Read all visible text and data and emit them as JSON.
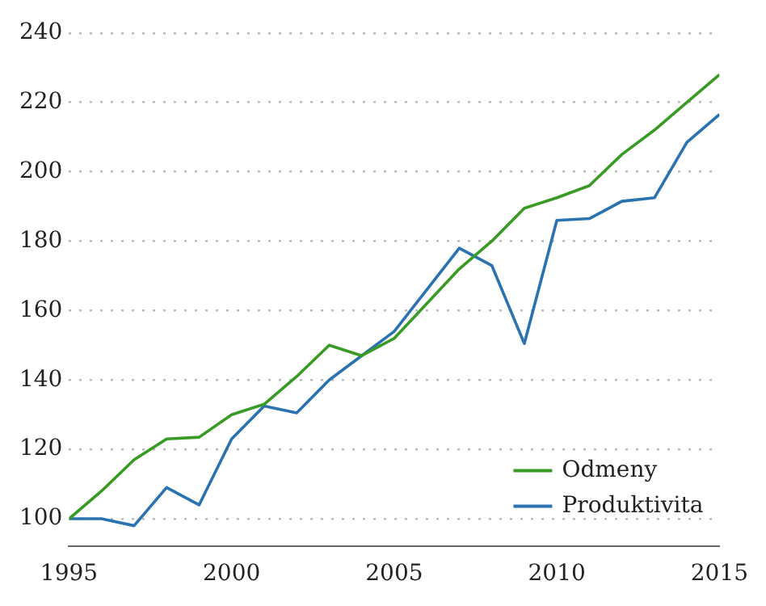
{
  "chart_data": {
    "type": "line",
    "x": [
      1995,
      1996,
      1997,
      1998,
      1999,
      2000,
      2001,
      2002,
      2003,
      2004,
      2005,
      2006,
      2007,
      2008,
      2009,
      2010,
      2011,
      2012,
      2013,
      2014,
      2015
    ],
    "series": [
      {
        "name": "Odmeny",
        "color": "#3a9a26",
        "values": [
          100,
          108,
          117,
          123,
          123.5,
          130,
          133,
          141,
          150,
          147,
          152,
          162,
          172,
          180,
          189.5,
          192.5,
          196,
          205,
          212,
          220,
          228
        ]
      },
      {
        "name": "Produktivita",
        "color": "#2a72b0",
        "values": [
          100,
          100,
          98,
          109,
          104,
          123,
          132.5,
          130.5,
          140,
          147,
          154,
          166,
          178,
          173,
          150.5,
          186,
          186.5,
          191.5,
          192.5,
          208.5,
          216.5
        ]
      }
    ],
    "xlim": [
      1995,
      2015
    ],
    "xticks": [
      1995,
      2000,
      2005,
      2010,
      2015
    ],
    "ylim": [
      92,
      240
    ],
    "yticks": [
      100,
      120,
      140,
      160,
      180,
      200,
      220,
      240
    ],
    "grid": "y",
    "legend": "bottom right",
    "marker": "none",
    "line_style": "solid"
  }
}
